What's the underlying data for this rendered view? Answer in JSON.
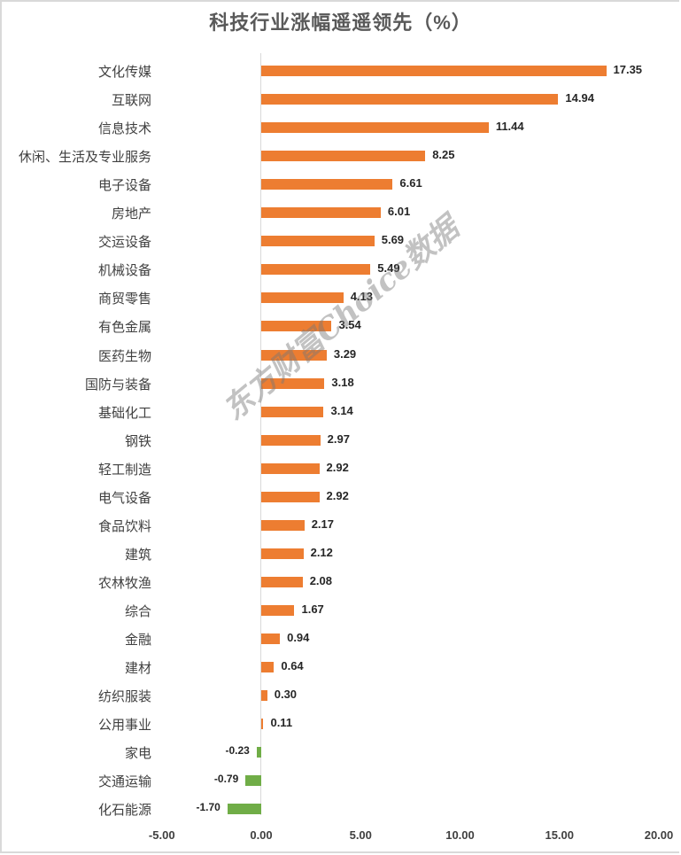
{
  "title": "科技行业涨幅遥遥领先（%）",
  "watermark": "东方财富Choice数据",
  "colors": {
    "positive": "#ED7D31",
    "negative": "#70AD47",
    "axis": "#D9D9D9",
    "text": "#404040"
  },
  "axis": {
    "ticks": [
      "-5.00",
      "0.00",
      "5.00",
      "10.00",
      "15.00",
      "20.00"
    ]
  },
  "rows": [
    {
      "label": "文化传媒",
      "value": "17.35"
    },
    {
      "label": "互联网",
      "value": "14.94"
    },
    {
      "label": "信息技术",
      "value": "11.44"
    },
    {
      "label": "休闲、生活及专业服务",
      "value": "8.25"
    },
    {
      "label": "电子设备",
      "value": "6.61"
    },
    {
      "label": "房地产",
      "value": "6.01"
    },
    {
      "label": "交运设备",
      "value": "5.69"
    },
    {
      "label": "机械设备",
      "value": "5.49"
    },
    {
      "label": "商贸零售",
      "value": "4.13"
    },
    {
      "label": "有色金属",
      "value": "3.54"
    },
    {
      "label": "医药生物",
      "value": "3.29"
    },
    {
      "label": "国防与装备",
      "value": "3.18"
    },
    {
      "label": "基础化工",
      "value": "3.14"
    },
    {
      "label": "钢铁",
      "value": "2.97"
    },
    {
      "label": "轻工制造",
      "value": "2.92"
    },
    {
      "label": "电气设备",
      "value": "2.92"
    },
    {
      "label": "食品饮料",
      "value": "2.17"
    },
    {
      "label": "建筑",
      "value": "2.12"
    },
    {
      "label": "农林牧渔",
      "value": "2.08"
    },
    {
      "label": "综合",
      "value": "1.67"
    },
    {
      "label": "金融",
      "value": "0.94"
    },
    {
      "label": "建材",
      "value": "0.64"
    },
    {
      "label": "纺织服装",
      "value": "0.30"
    },
    {
      "label": "公用事业",
      "value": "0.11"
    },
    {
      "label": "家电",
      "value": "-0.23"
    },
    {
      "label": "交通运输",
      "value": "-0.79"
    },
    {
      "label": "化石能源",
      "value": "-1.70"
    }
  ],
  "chart_data": {
    "type": "bar",
    "orientation": "horizontal",
    "title": "科技行业涨幅遥遥领先（%）",
    "xlabel": "",
    "ylabel": "",
    "xlim": [
      -5,
      20
    ],
    "xticks": [
      -5,
      0,
      5,
      10,
      15,
      20
    ],
    "grid": false,
    "legend": null,
    "data_labels": true,
    "categories": [
      "文化传媒",
      "互联网",
      "信息技术",
      "休闲、生活及专业服务",
      "电子设备",
      "房地产",
      "交运设备",
      "机械设备",
      "商贸零售",
      "有色金属",
      "医药生物",
      "国防与装备",
      "基础化工",
      "钢铁",
      "轻工制造",
      "电气设备",
      "食品饮料",
      "建筑",
      "农林牧渔",
      "综合",
      "金融",
      "建材",
      "纺织服装",
      "公用事业",
      "家电",
      "交通运输",
      "化石能源"
    ],
    "values": [
      17.35,
      14.94,
      11.44,
      8.25,
      6.61,
      6.01,
      5.69,
      5.49,
      4.13,
      3.54,
      3.29,
      3.18,
      3.14,
      2.97,
      2.92,
      2.92,
      2.17,
      2.12,
      2.08,
      1.67,
      0.94,
      0.64,
      0.3,
      0.11,
      -0.23,
      -0.79,
      -1.7
    ],
    "colors": {
      "positive": "#ED7D31",
      "negative": "#70AD47"
    },
    "annotations": [
      "东方财富Choice数据"
    ]
  }
}
